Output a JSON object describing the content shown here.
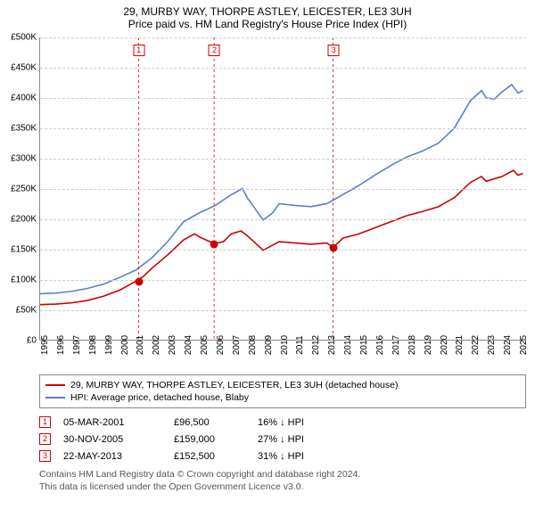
{
  "title": "29, MURBY WAY, THORPE ASTLEY, LEICESTER, LE3 3UH",
  "subtitle": "Price paid vs. HM Land Registry's House Price Index (HPI)",
  "chart": {
    "type": "line",
    "background_color": "#ffffff",
    "grid_color": "#cccccc",
    "axis_color": "#888888",
    "x_years": [
      1995,
      1996,
      1997,
      1998,
      1999,
      2000,
      2001,
      2002,
      2003,
      2004,
      2005,
      2006,
      2007,
      2008,
      2009,
      2010,
      2011,
      2012,
      2013,
      2014,
      2015,
      2016,
      2017,
      2018,
      2019,
      2020,
      2021,
      2022,
      2023,
      2024,
      2025
    ],
    "xlim": [
      1995,
      2025.5
    ],
    "ylim": [
      0,
      500000
    ],
    "ytick_step": 50000,
    "yticks": [
      "£0",
      "£50K",
      "£100K",
      "£150K",
      "£200K",
      "£250K",
      "£300K",
      "£350K",
      "£400K",
      "£450K",
      "£500K"
    ],
    "label_fontsize": 10,
    "line_width": 1.6,
    "series": [
      {
        "name": "29, MURBY WAY, THORPE ASTLEY, LEICESTER, LE3 3UH (detached house)",
        "color": "#cc0000",
        "data": [
          [
            1995,
            58000
          ],
          [
            1996,
            59000
          ],
          [
            1997,
            61000
          ],
          [
            1998,
            65000
          ],
          [
            1999,
            72000
          ],
          [
            2000,
            82000
          ],
          [
            2001,
            96500
          ],
          [
            2001.5,
            105000
          ],
          [
            2002,
            118000
          ],
          [
            2003,
            140000
          ],
          [
            2004,
            165000
          ],
          [
            2004.7,
            175000
          ],
          [
            2005,
            170000
          ],
          [
            2005.92,
            159000
          ],
          [
            2006.5,
            162000
          ],
          [
            2007,
            175000
          ],
          [
            2007.6,
            180000
          ],
          [
            2008,
            172000
          ],
          [
            2009,
            148000
          ],
          [
            2009.7,
            158000
          ],
          [
            2010,
            162000
          ],
          [
            2011,
            160000
          ],
          [
            2012,
            158000
          ],
          [
            2013,
            160000
          ],
          [
            2013.39,
            152500
          ],
          [
            2014,
            168000
          ],
          [
            2015,
            175000
          ],
          [
            2016,
            185000
          ],
          [
            2017,
            195000
          ],
          [
            2018,
            205000
          ],
          [
            2019,
            212000
          ],
          [
            2020,
            220000
          ],
          [
            2021,
            235000
          ],
          [
            2022,
            260000
          ],
          [
            2022.7,
            270000
          ],
          [
            2023,
            262000
          ],
          [
            2024,
            270000
          ],
          [
            2024.7,
            280000
          ],
          [
            2025,
            272000
          ],
          [
            2025.3,
            275000
          ]
        ]
      },
      {
        "name": "HPI: Average price, detached house, Blaby",
        "color": "#5b7fcf",
        "data": [
          [
            1995,
            76000
          ],
          [
            1996,
            77000
          ],
          [
            1997,
            80000
          ],
          [
            1998,
            85000
          ],
          [
            1999,
            92000
          ],
          [
            2000,
            103000
          ],
          [
            2001,
            115000
          ],
          [
            2002,
            135000
          ],
          [
            2003,
            162000
          ],
          [
            2004,
            195000
          ],
          [
            2005,
            210000
          ],
          [
            2006,
            222000
          ],
          [
            2007,
            240000
          ],
          [
            2007.7,
            250000
          ],
          [
            2008,
            235000
          ],
          [
            2009,
            198000
          ],
          [
            2009.6,
            210000
          ],
          [
            2010,
            225000
          ],
          [
            2011,
            222000
          ],
          [
            2012,
            220000
          ],
          [
            2013,
            225000
          ],
          [
            2014,
            240000
          ],
          [
            2015,
            255000
          ],
          [
            2016,
            272000
          ],
          [
            2017,
            288000
          ],
          [
            2018,
            302000
          ],
          [
            2019,
            312000
          ],
          [
            2020,
            325000
          ],
          [
            2021,
            350000
          ],
          [
            2022,
            395000
          ],
          [
            2022.7,
            412000
          ],
          [
            2023,
            400000
          ],
          [
            2023.5,
            398000
          ],
          [
            2024,
            410000
          ],
          [
            2024.6,
            422000
          ],
          [
            2025,
            408000
          ],
          [
            2025.3,
            412000
          ]
        ]
      }
    ],
    "markers": [
      {
        "n": "1",
        "x": 2001.18,
        "date": "05-MAR-2001",
        "price": 96500,
        "price_label": "£96,500",
        "delta": "16% ↓ HPI"
      },
      {
        "n": "2",
        "x": 2005.92,
        "date": "30-NOV-2005",
        "price": 159000,
        "price_label": "£159,000",
        "delta": "27% ↓ HPI"
      },
      {
        "n": "3",
        "x": 2013.39,
        "date": "22-MAY-2013",
        "price": 152500,
        "price_label": "£152,500",
        "delta": "31% ↓ HPI"
      }
    ],
    "marker_box_color": "#cc0000",
    "marker_dot_color": "#cc0000"
  },
  "legend_border": "#888888",
  "footer_line1": "Contains HM Land Registry data © Crown copyright and database right 2024.",
  "footer_line2": "This data is licensed under the Open Government Licence v3.0.",
  "footer_color": "#555555"
}
